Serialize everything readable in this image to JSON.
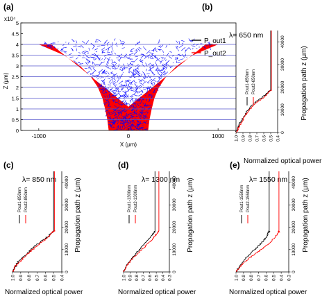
{
  "figure": {
    "panels": [
      {
        "id": "a",
        "panel_label": "(a)",
        "chart_data": {
          "type": "area",
          "exponent_label": "x10⁴",
          "xlabel": "X (μm)",
          "ylabel": "Z (μm)",
          "xlim": [
            -1200,
            1200
          ],
          "ylim": [
            0,
            5
          ],
          "xticks": [
            "-1000",
            "0",
            "1000"
          ],
          "yticks": [
            "0",
            "0.5",
            "1",
            "1.5",
            "2",
            "2.5",
            "3",
            "3.5",
            "4",
            "4.5",
            "5"
          ],
          "horizontal_lines": [
            0.5,
            1,
            1.5,
            2,
            2.5,
            3,
            3.5,
            4
          ],
          "legend": [
            "P_out1",
            "P_out2"
          ],
          "series": [
            {
              "name": "Pout2",
              "color": "#ff0000",
              "kind": "filled Y-branch waveguide",
              "z": [
                0,
                0.5,
                1,
                1.5,
                2,
                2.5,
                3,
                3.5,
                4
              ],
              "half_width": [
                220,
                235,
                260,
                290,
                340,
                420,
                540,
                720,
                1000
              ]
            },
            {
              "name": "Pout1",
              "color": "#0000ff",
              "kind": "noisy propagating field overlay",
              "z": [
                0,
                0.5,
                1,
                1.5,
                2,
                2.5,
                3,
                3.5,
                4,
                4.2
              ],
              "half_width": [
                200,
                210,
                235,
                270,
                320,
                400,
                520,
                700,
                980,
                1050
              ]
            }
          ]
        }
      },
      {
        "id": "b",
        "panel_label": "(b)",
        "title": "λ= 650 nm",
        "chart_data": {
          "type": "line",
          "xlabel": "Normalized optical power",
          "ylabel": "Propagation path z (μm)",
          "xlim": [
            1.0,
            0.4
          ],
          "ylim": [
            0,
            45000
          ],
          "xticks": [
            "1.0",
            "0.9",
            "0.8",
            "0.7",
            "0.6",
            "0.5",
            "0.4"
          ],
          "yticks": [
            "0",
            "10000",
            "20000",
            "30000",
            "40000"
          ],
          "legend": [
            "Pout1-650nm",
            "Pout2-650nm"
          ],
          "series": [
            {
              "name": "Pout1-650nm",
              "color": "#000000",
              "points": [
                [
                  1.0,
                  0
                ],
                [
                  0.98,
                  1500
                ],
                [
                  0.96,
                  3000
                ],
                [
                  0.93,
                  5000
                ],
                [
                  0.89,
                  7000
                ],
                [
                  0.85,
                  9000
                ],
                [
                  0.8,
                  11000
                ],
                [
                  0.75,
                  12500
                ],
                [
                  0.69,
                  14000
                ],
                [
                  0.62,
                  15500
                ],
                [
                  0.56,
                  17000
                ],
                [
                  0.52,
                  18300
                ],
                [
                  0.5,
                  18700
                ],
                [
                  0.5,
                  45000
                ]
              ]
            },
            {
              "name": "Pout2-650nm",
              "color": "#ff0000",
              "points": [
                [
                  1.0,
                  0
                ],
                [
                  0.97,
                  1500
                ],
                [
                  0.95,
                  3000
                ],
                [
                  0.91,
                  5000
                ],
                [
                  0.88,
                  7000
                ],
                [
                  0.83,
                  9000
                ],
                [
                  0.78,
                  11000
                ],
                [
                  0.73,
                  12500
                ],
                [
                  0.67,
                  14000
                ],
                [
                  0.6,
                  15500
                ],
                [
                  0.55,
                  17000
                ],
                [
                  0.51,
                  18300
                ],
                [
                  0.49,
                  18700
                ],
                [
                  0.49,
                  45000
                ]
              ]
            }
          ]
        }
      },
      {
        "id": "c",
        "panel_label": "(c)",
        "title": "λ= 850 nm",
        "chart_data": {
          "type": "line",
          "xlabel": "Normalized optical power",
          "ylabel": "Propagation path z (μm)",
          "xlim": [
            1.0,
            0.4
          ],
          "ylim": [
            0,
            45000
          ],
          "xticks": [
            "1.0",
            "0.9",
            "0.8",
            "0.7",
            "0.6",
            "0.5",
            "0.4"
          ],
          "yticks": [
            "0",
            "10000",
            "20000",
            "30000",
            "40000"
          ],
          "legend": [
            "Pout1-850nm",
            "Pout2-850nm"
          ],
          "series": [
            {
              "name": "Pout1-850nm",
              "color": "#000000",
              "points": [
                [
                  1.0,
                  0
                ],
                [
                  0.97,
                  2000
                ],
                [
                  0.95,
                  3500
                ],
                [
                  0.92,
                  5000
                ],
                [
                  0.86,
                  7000
                ],
                [
                  0.8,
                  9000
                ],
                [
                  0.76,
                  10500
                ],
                [
                  0.71,
                  12000
                ],
                [
                  0.66,
                  13500
                ],
                [
                  0.6,
                  15000
                ],
                [
                  0.55,
                  16500
                ],
                [
                  0.51,
                  17800
                ],
                [
                  0.5,
                  18500
                ],
                [
                  0.5,
                  45000
                ]
              ]
            },
            {
              "name": "Pout2-850nm",
              "color": "#ff0000",
              "points": [
                [
                  1.0,
                  0
                ],
                [
                  0.98,
                  2000
                ],
                [
                  0.94,
                  3500
                ],
                [
                  0.9,
                  5000
                ],
                [
                  0.84,
                  7000
                ],
                [
                  0.79,
                  9000
                ],
                [
                  0.74,
                  10500
                ],
                [
                  0.69,
                  12000
                ],
                [
                  0.64,
                  13500
                ],
                [
                  0.58,
                  15000
                ],
                [
                  0.54,
                  16500
                ],
                [
                  0.51,
                  17800
                ],
                [
                  0.49,
                  18500
                ],
                [
                  0.49,
                  45000
                ]
              ]
            }
          ]
        }
      },
      {
        "id": "d",
        "panel_label": "(d)",
        "title": "λ= 1300 nm",
        "chart_data": {
          "type": "line",
          "xlabel": "Normalized optical power",
          "ylabel": "Propagation path z (μm)",
          "xlim": [
            1.0,
            0.3
          ],
          "ylim": [
            0,
            45000
          ],
          "xticks": [
            "1.0",
            "0.9",
            "0.8",
            "0.7",
            "0.6",
            "0.5",
            "0.4",
            "0.3"
          ],
          "yticks": [
            "0",
            "10000",
            "20000",
            "30000",
            "40000"
          ],
          "legend": [
            "Pout1-1300nm",
            "Pout2-1300nm"
          ],
          "series": [
            {
              "name": "Pout1-1300nm",
              "color": "#000000",
              "points": [
                [
                  1.0,
                  0
                ],
                [
                  0.97,
                  2000
                ],
                [
                  0.93,
                  4000
                ],
                [
                  0.88,
                  6000
                ],
                [
                  0.82,
                  8000
                ],
                [
                  0.76,
                  10000
                ],
                [
                  0.7,
                  12000
                ],
                [
                  0.64,
                  14000
                ],
                [
                  0.58,
                  16000
                ],
                [
                  0.54,
                  17500
                ],
                [
                  0.52,
                  18400
                ],
                [
                  0.52,
                  45000
                ]
              ]
            },
            {
              "name": "Pout2-1300nm",
              "color": "#ff0000",
              "points": [
                [
                  1.0,
                  0
                ],
                [
                  0.96,
                  2000
                ],
                [
                  0.92,
                  4000
                ],
                [
                  0.86,
                  6000
                ],
                [
                  0.79,
                  8000
                ],
                [
                  0.72,
                  10000
                ],
                [
                  0.65,
                  12000
                ],
                [
                  0.58,
                  14000
                ],
                [
                  0.52,
                  16000
                ],
                [
                  0.48,
                  17500
                ],
                [
                  0.46,
                  18400
                ],
                [
                  0.46,
                  45000
                ]
              ]
            }
          ]
        }
      },
      {
        "id": "e",
        "panel_label": "(e)",
        "title": "λ= 1550 nm",
        "chart_data": {
          "type": "line",
          "xlabel": "Normalized optical power",
          "ylabel": "Propagation path z (μm)",
          "xlim": [
            1.0,
            0.3
          ],
          "ylim": [
            0,
            45000
          ],
          "xticks": [
            "1.0",
            "0.9",
            "0.8",
            "0.7",
            "0.6",
            "0.5",
            "0.4",
            "0.3"
          ],
          "yticks": [
            "0",
            "10000",
            "20000",
            "30000",
            "40000"
          ],
          "legend": [
            "Pout1-1550nm",
            "Pout2-1550nm"
          ],
          "series": [
            {
              "name": "Pout1-1550nm",
              "color": "#000000",
              "points": [
                [
                  1.0,
                  0
                ],
                [
                  0.96,
                  2000
                ],
                [
                  0.92,
                  4000
                ],
                [
                  0.87,
                  6000
                ],
                [
                  0.81,
                  8000
                ],
                [
                  0.75,
                  10000
                ],
                [
                  0.69,
                  12000
                ],
                [
                  0.63,
                  14000
                ],
                [
                  0.59,
                  16000
                ],
                [
                  0.57,
                  17500
                ],
                [
                  0.56,
                  18400
                ],
                [
                  0.56,
                  45000
                ]
              ]
            },
            {
              "name": "Pout2-1550nm",
              "color": "#ff0000",
              "points": [
                [
                  1.0,
                  0
                ],
                [
                  0.95,
                  2000
                ],
                [
                  0.9,
                  4000
                ],
                [
                  0.83,
                  6000
                ],
                [
                  0.75,
                  8000
                ],
                [
                  0.67,
                  10000
                ],
                [
                  0.59,
                  12000
                ],
                [
                  0.52,
                  14000
                ],
                [
                  0.47,
                  16000
                ],
                [
                  0.44,
                  17500
                ],
                [
                  0.43,
                  18400
                ],
                [
                  0.43,
                  45000
                ]
              ]
            }
          ]
        }
      }
    ]
  }
}
